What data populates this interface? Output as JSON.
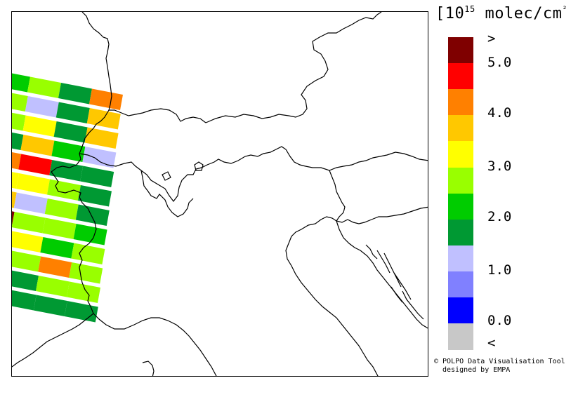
{
  "legend": {
    "units_open": "[10",
    "units_exp": "15",
    "units_rest": " molec/cm",
    "units_sq": "²",
    "units_close": " ]",
    "colors": [
      "#7f0000",
      "#ff0000",
      "#ff8000",
      "#ffc800",
      "#ffff00",
      "#99ff00",
      "#00cc00",
      "#009933",
      "#c0c0ff",
      "#8080ff",
      "#0000ff",
      "#c8c8c8"
    ],
    "labels": [
      ">",
      "5.0",
      "4.0",
      "3.0",
      "2.0",
      "1.0",
      "0.0",
      "<"
    ]
  },
  "credit": {
    "line1": "© POLPO Data Visualisation Tool",
    "line2": "designed by EMPA"
  },
  "map": {
    "region": "Alps / Northern Italy",
    "swath_color_levels": [
      [
        "green5",
        "green6",
        "green2",
        "orange"
      ],
      [
        "green6",
        "lilac",
        "green2",
        "yellow2"
      ],
      [
        "green6",
        "yellow",
        "green2",
        "yellow2"
      ],
      [
        "green2",
        "yellow2",
        "green1",
        "lilac"
      ],
      [
        "orange",
        "red",
        "green2",
        "green2"
      ],
      [
        "yellow",
        "yellow",
        "green6",
        "green2"
      ],
      [
        "yellow2",
        "lilac",
        "green6",
        "green2"
      ],
      [
        "darkred",
        "green6",
        "green6",
        "green1"
      ],
      [
        "yellow2",
        "yellow",
        "green1",
        "green6"
      ],
      [
        "green6",
        "green6",
        "orange",
        "green6"
      ],
      [
        "green2",
        "green2",
        "green6",
        "green6"
      ],
      [
        "green2",
        "green2",
        "green2",
        "green2"
      ]
    ]
  }
}
